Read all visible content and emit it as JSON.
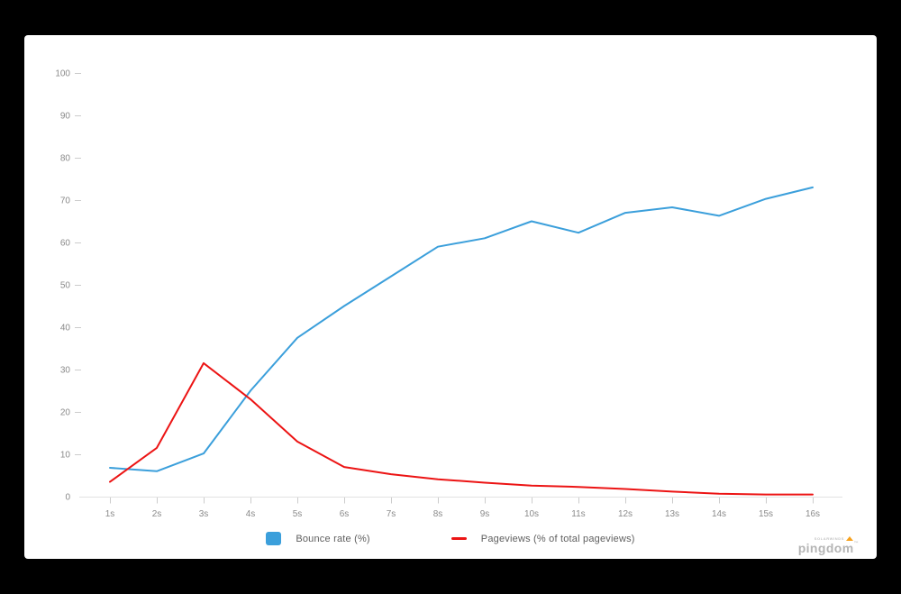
{
  "page": {
    "background": "#000000",
    "card_background": "#ffffff"
  },
  "chart_data": {
    "type": "line",
    "title": "",
    "xlabel": "",
    "ylabel": "",
    "x_categories": [
      "1s",
      "2s",
      "3s",
      "4s",
      "5s",
      "6s",
      "7s",
      "8s",
      "9s",
      "10s",
      "11s",
      "12s",
      "13s",
      "14s",
      "15s",
      "16s"
    ],
    "yticks": [
      0,
      10,
      20,
      30,
      40,
      50,
      60,
      70,
      80,
      90,
      100
    ],
    "ylim": [
      0,
      100
    ],
    "grid": "none",
    "legend_position": "bottom",
    "series": [
      {
        "name": "Bounce rate (%)",
        "color": "#3b9fdb",
        "legend_marker": "square",
        "values": [
          6.8,
          6,
          10.2,
          25,
          37.5,
          45,
          52,
          59,
          61,
          65,
          62.3,
          67,
          68.3,
          66.3,
          70.3,
          73
        ]
      },
      {
        "name": "Pageviews (% of total pageviews)",
        "color": "#ec1414",
        "legend_marker": "line",
        "values": [
          3.5,
          11.5,
          31.5,
          23,
          13,
          7,
          5.3,
          4.1,
          3.3,
          2.6,
          2.3,
          1.8,
          1.2,
          0.7,
          0.5,
          0.5
        ]
      }
    ]
  },
  "branding": {
    "small_text": "SOLARWINDS",
    "name": "pingdom",
    "trademark": "™"
  },
  "colors": {
    "axis_line": "#e2e2e2",
    "tick": "#cccccc",
    "axis_label": "#8a8a8a",
    "legend_text": "#5f5f5f",
    "brand_gray": "#b5b5b5",
    "brand_orange": "#f7a11d"
  }
}
